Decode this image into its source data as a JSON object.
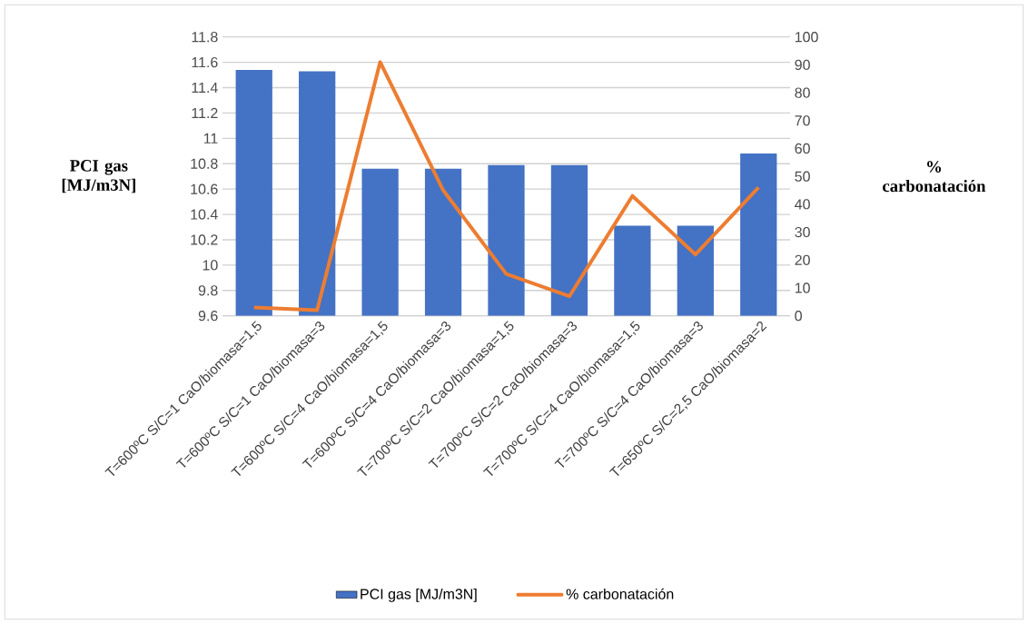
{
  "chart_data": {
    "type": "bar",
    "categories": [
      "T=600ºC S/C=1 CaO/biomasa=1,5",
      "T=600ºC S/C=1 CaO/biomasa=3",
      "T=600ºC S/C=4 CaO/biomasa=1,5",
      "T=600ºC S/C=4 CaO/biomasa=3",
      "T=700ºC S/C=2 CaO/biomasa=1,5",
      "T=700ºC S/C=2 CaO/biomasa=3",
      "T=700ºC S/C=4 CaO/biomasa=1,5",
      "T=700ºC S/C=4 CaO/biomasa=3",
      "T=650ºC S/C=2,5 CaO/biomasa=2"
    ],
    "series": [
      {
        "name": "PCI gas [MJ/m3N]",
        "color": "#4472c4",
        "values": [
          11.54,
          11.53,
          10.76,
          10.76,
          10.79,
          10.79,
          10.31,
          10.31,
          10.88
        ]
      },
      {
        "name": "% carbonatación",
        "type": "line",
        "axis": "y2",
        "color": "#ed7d31",
        "values": [
          3,
          2,
          91,
          45,
          15,
          7,
          43,
          22,
          46
        ]
      }
    ],
    "ylabel": "PCI gas [MJ/m3N]",
    "y2label": "% carbonatación",
    "ylim": [
      9.6,
      11.8
    ],
    "yticks": [
      9.6,
      9.8,
      10,
      10.2,
      10.4,
      10.6,
      10.8,
      11,
      11.2,
      11.4,
      11.6,
      11.8
    ],
    "y2lim": [
      0,
      100
    ],
    "y2ticks": [
      0,
      10,
      20,
      30,
      40,
      50,
      60,
      70,
      80,
      90,
      100
    ],
    "grid": "y",
    "legend": "bottom"
  }
}
